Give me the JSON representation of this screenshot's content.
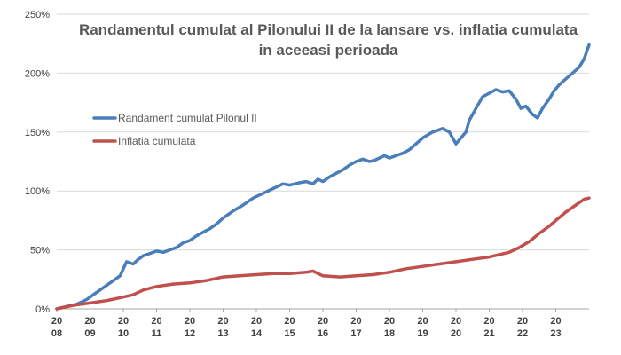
{
  "chart_data": {
    "type": "line",
    "title_line1": "Randamentul cumulat al Pilonului II de la lansare vs. inflatia cumulata",
    "title_line2": "in aceeasi perioada",
    "y_ticks": [
      "0%",
      "50%",
      "100%",
      "150%",
      "200%",
      "250%"
    ],
    "ylim": [
      0,
      250
    ],
    "x_tick_labels": [
      [
        "20",
        "08"
      ],
      [
        "20",
        "09"
      ],
      [
        "20",
        "10"
      ],
      [
        "20",
        "11"
      ],
      [
        "20",
        "12"
      ],
      [
        "20",
        "13"
      ],
      [
        "20",
        "14"
      ],
      [
        "20",
        "15"
      ],
      [
        "20",
        "16"
      ],
      [
        "20",
        "17"
      ],
      [
        "20",
        "18"
      ],
      [
        "20",
        "19"
      ],
      [
        "20",
        "20"
      ],
      [
        "20",
        "21"
      ],
      [
        "20",
        "22"
      ],
      [
        "20",
        "23"
      ]
    ],
    "x_tick_years": [
      2008.0,
      2009.0,
      2010.0,
      2011.0,
      2012.0,
      2013.0,
      2014.0,
      2015.0,
      2016.0,
      2017.0,
      2018.0,
      2019.0,
      2020.0,
      2021.0,
      2022.0,
      2023.0
    ],
    "xlim": [
      2008.0,
      2024.0
    ],
    "legend_position": "center-left",
    "series": [
      {
        "name": "Randament cumulat Pilonul II",
        "color": "#4a7ebb",
        "x": [
          2008.0,
          2008.3,
          2008.6,
          2008.9,
          2009.1,
          2009.3,
          2009.6,
          2009.9,
          2010.1,
          2010.3,
          2010.45,
          2010.6,
          2010.8,
          2011.0,
          2011.2,
          2011.4,
          2011.6,
          2011.8,
          2012.0,
          2012.2,
          2012.4,
          2012.6,
          2012.8,
          2013.0,
          2013.3,
          2013.6,
          2013.9,
          2014.2,
          2014.5,
          2014.8,
          2015.0,
          2015.3,
          2015.5,
          2015.7,
          2015.85,
          2016.0,
          2016.2,
          2016.4,
          2016.6,
          2016.8,
          2017.0,
          2017.2,
          2017.4,
          2017.55,
          2017.7,
          2017.85,
          2018.0,
          2018.2,
          2018.4,
          2018.6,
          2018.8,
          2019.0,
          2019.3,
          2019.6,
          2019.8,
          2020.0,
          2020.15,
          2020.3,
          2020.4,
          2020.6,
          2020.8,
          2021.0,
          2021.2,
          2021.4,
          2021.6,
          2021.8,
          2021.95,
          2022.1,
          2022.3,
          2022.45,
          2022.6,
          2022.8,
          2022.95,
          2023.1,
          2023.3,
          2023.5,
          2023.7,
          2023.85,
          2024.0
        ],
        "values": [
          0,
          2,
          4,
          8,
          12,
          16,
          22,
          28,
          40,
          38,
          42,
          45,
          47,
          49,
          48,
          50,
          52,
          56,
          58,
          62,
          65,
          68,
          72,
          77,
          83,
          88,
          94,
          98,
          102,
          106,
          105,
          107,
          108,
          106,
          110,
          108,
          112,
          115,
          118,
          122,
          125,
          127,
          125,
          126,
          128,
          130,
          128,
          130,
          132,
          135,
          140,
          145,
          150,
          153,
          150,
          140,
          145,
          150,
          160,
          170,
          180,
          183,
          186,
          184,
          185,
          178,
          170,
          172,
          165,
          162,
          170,
          178,
          185,
          190,
          195,
          200,
          205,
          212,
          224
        ]
      },
      {
        "name": "Inflatia cumulata",
        "color": "#c0504d",
        "x": [
          2008.0,
          2008.5,
          2009.0,
          2009.5,
          2010.0,
          2010.3,
          2010.6,
          2011.0,
          2011.5,
          2012.0,
          2012.5,
          2013.0,
          2013.5,
          2014.0,
          2014.5,
          2015.0,
          2015.5,
          2015.7,
          2016.0,
          2016.5,
          2017.0,
          2017.5,
          2018.0,
          2018.5,
          2019.0,
          2019.5,
          2020.0,
          2020.5,
          2021.0,
          2021.3,
          2021.6,
          2021.9,
          2022.2,
          2022.5,
          2022.8,
          2023.0,
          2023.3,
          2023.6,
          2023.85,
          2024.0
        ],
        "values": [
          0,
          3,
          5,
          7,
          10,
          12,
          16,
          19,
          21,
          22,
          24,
          27,
          28,
          29,
          30,
          30,
          31,
          32,
          28,
          27,
          28,
          29,
          31,
          34,
          36,
          38,
          40,
          42,
          44,
          46,
          48,
          52,
          57,
          64,
          70,
          75,
          82,
          88,
          93,
          94
        ]
      }
    ]
  }
}
